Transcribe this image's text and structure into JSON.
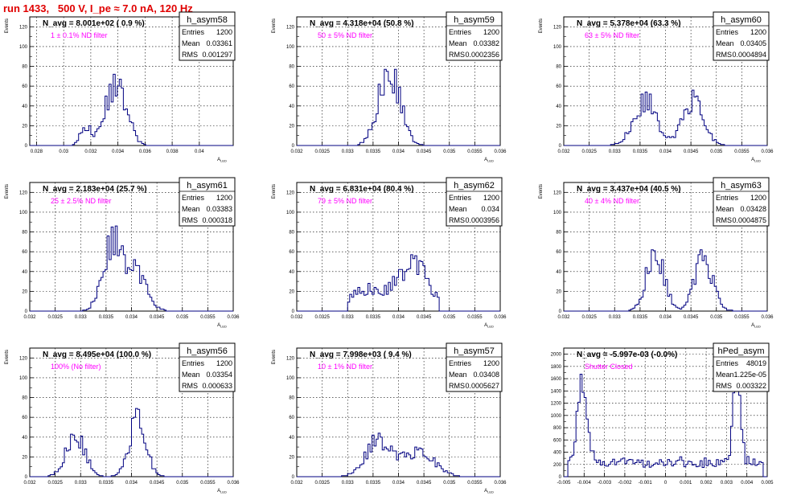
{
  "title": "run 1433,   500 V, I_pe ≈ 7.0 nA, 120 Hz",
  "colors": {
    "hist": "#000080",
    "filter_label": "#ff00ff",
    "title": "#e00000",
    "grid": "#000000"
  },
  "chart_data": [
    {
      "type": "histogram",
      "name": "h_asym58",
      "nlabel": "N_avg = 8.001e+02 ( 0.9 %)",
      "filter": "1 ± 0.1% ND filter",
      "stats": {
        "Entries": "1200",
        "Mean": "0.03361",
        "RMS": "0.001297"
      },
      "xlabel": "A_LED",
      "ylabel": "Events",
      "xlim": [
        0.0275,
        0.0425
      ],
      "ylim": [
        0,
        130
      ],
      "xticks": [
        0.028,
        0.03,
        0.032,
        0.034,
        0.036,
        0.038,
        0.04
      ],
      "xtick_labels": [
        "0.028",
        "0.03",
        "0.032",
        "0.034",
        "0.036",
        "0.038",
        "0.04"
      ],
      "yticks": [
        0,
        20,
        40,
        60,
        80,
        100,
        120
      ],
      "xpeaks": [
        [
          0.0316,
          20,
          0.00035
        ],
        [
          0.0333,
          38,
          0.0006
        ],
        [
          0.0343,
          44,
          0.0006
        ]
      ],
      "range": [
        0.0303,
        0.0363
      ],
      "counts": [],
      "grid": true
    },
    {
      "type": "histogram",
      "name": "h_asym59",
      "nlabel": "N_avg = 4.318e+04 (50.8 %)",
      "filter": "50 ± 5% ND filter",
      "stats": {
        "Entries": "1200",
        "Mean": "0.03382",
        "RMS": "0.0002356"
      },
      "xlabel": "A_LED",
      "ylabel": "Events",
      "xlim": [
        0.032,
        0.036
      ],
      "ylim": [
        0,
        130
      ],
      "xticks": [
        0.032,
        0.0325,
        0.033,
        0.0335,
        0.034,
        0.0345,
        0.035,
        0.0355,
        0.036
      ],
      "xtick_labels": [
        "0.032",
        "0.0325",
        "0.033",
        "0.0335",
        "0.034",
        "0.0345",
        "0.035",
        "0.0355",
        "0.036"
      ],
      "yticks": [
        0,
        20,
        40,
        60,
        80,
        100,
        120
      ],
      "xpeaks": [
        [
          0.03382,
          78,
          0.00021
        ]
      ],
      "range": [
        0.0332,
        0.0346
      ],
      "counts": [],
      "grid": true
    },
    {
      "type": "histogram",
      "name": "h_asym60",
      "nlabel": "N_avg = 5.378e+04 (63.3 %)",
      "filter": "63 ± 5% ND filter",
      "stats": {
        "Entries": "1200",
        "Mean": "0.03405",
        "RMS": "0.0004894"
      },
      "xlabel": "A_LED",
      "ylabel": "Events",
      "xlim": [
        0.032,
        0.036
      ],
      "ylim": [
        0,
        130
      ],
      "xticks": [
        0.032,
        0.0325,
        0.033,
        0.0335,
        0.034,
        0.0345,
        0.035,
        0.0355,
        0.036
      ],
      "xtick_labels": [
        "0.032",
        "0.0325",
        "0.033",
        "0.0335",
        "0.034",
        "0.0345",
        "0.035",
        "0.0355",
        "0.036"
      ],
      "yticks": [
        0,
        20,
        40,
        60,
        80,
        100,
        120
      ],
      "xpeaks": [
        [
          0.0336,
          46,
          0.00022
        ],
        [
          0.03455,
          48,
          0.0002
        ]
      ],
      "range": [
        0.0328,
        0.0352
      ],
      "counts": [],
      "grid": true
    },
    {
      "type": "histogram",
      "name": "h_asym61",
      "nlabel": "N_avg = 2.183e+04 (25.7 %)",
      "filter": "25 ± 2.5% ND filter",
      "stats": {
        "Entries": "1200",
        "Mean": "0.03383",
        "RMS": "0.000318"
      },
      "xlabel": "A_LED",
      "ylabel": "Events",
      "xlim": [
        0.032,
        0.036
      ],
      "ylim": [
        0,
        130
      ],
      "xticks": [
        0.032,
        0.0325,
        0.033,
        0.0335,
        0.034,
        0.0345,
        0.035,
        0.0355,
        0.036
      ],
      "xtick_labels": [
        "0.032",
        "0.0325",
        "0.033",
        "0.0335",
        "0.034",
        "0.0345",
        "0.035",
        "0.0355",
        "0.036"
      ],
      "yticks": [
        0,
        20,
        40,
        60,
        80,
        100,
        120
      ],
      "xpeaks": [
        [
          0.0336,
          66,
          0.00018
        ],
        [
          0.03405,
          42,
          0.00022
        ]
      ],
      "range": [
        0.0328,
        0.0349
      ],
      "counts": [],
      "grid": true
    },
    {
      "type": "histogram",
      "name": "h_asym62",
      "nlabel": "N_avg = 6.831e+04 (80.4 %)",
      "filter": "79 ± 5% ND filter",
      "stats": {
        "Entries": "1200",
        "Mean": "0.034",
        "RMS": "0.0003956"
      },
      "xlabel": "A_LED",
      "ylabel": "Events",
      "xlim": [
        0.032,
        0.036
      ],
      "ylim": [
        0,
        130
      ],
      "xticks": [
        0.032,
        0.0325,
        0.033,
        0.0335,
        0.034,
        0.0345,
        0.035,
        0.0355,
        0.036
      ],
      "xtick_labels": [
        "0.032",
        "0.0325",
        "0.033",
        "0.0335",
        "0.034",
        "0.0345",
        "0.035",
        "0.0355",
        "0.036"
      ],
      "yticks": [
        0,
        20,
        40,
        60,
        80,
        100,
        120
      ],
      "xpeaks": [
        [
          0.0334,
          22,
          0.00035
        ],
        [
          0.0343,
          48,
          0.0003
        ]
      ],
      "range": [
        0.033,
        0.0348
      ],
      "counts": [],
      "grid": true
    },
    {
      "type": "histogram",
      "name": "h_asym63",
      "nlabel": "N_avg = 3.437e+04 (40.5 %)",
      "filter": "40 ± 4% ND filter",
      "stats": {
        "Entries": "1200",
        "Mean": "0.03428",
        "RMS": "0.0004875"
      },
      "xlabel": "A_LED",
      "ylabel": "Events",
      "xlim": [
        0.032,
        0.036
      ],
      "ylim": [
        0,
        130
      ],
      "xticks": [
        0.032,
        0.0325,
        0.033,
        0.0335,
        0.034,
        0.0345,
        0.035,
        0.0355,
        0.036
      ],
      "xtick_labels": [
        "0.032",
        "0.0325",
        "0.033",
        "0.0335",
        "0.034",
        "0.0345",
        "0.035",
        "0.0355",
        "0.036"
      ],
      "yticks": [
        0,
        20,
        40,
        60,
        80,
        100,
        120
      ],
      "xpeaks": [
        [
          0.0338,
          62,
          0.00017
        ],
        [
          0.03475,
          54,
          0.00018
        ]
      ],
      "range": [
        0.0332,
        0.0353
      ],
      "counts": [],
      "grid": true
    },
    {
      "type": "histogram",
      "name": "h_asym56",
      "nlabel": "N_avg = 8.495e+04 (100.0 %)",
      "filter": "100% (No filter)",
      "stats": {
        "Entries": "1200",
        "Mean": "0.03354",
        "RMS": "0.000633"
      },
      "xlabel": "A_LED",
      "ylabel": "Events",
      "xlim": [
        0.032,
        0.036
      ],
      "ylim": [
        0,
        130
      ],
      "xticks": [
        0.032,
        0.0325,
        0.033,
        0.0335,
        0.034,
        0.0345,
        0.035,
        0.0355,
        0.036
      ],
      "xtick_labels": [
        "0.032",
        "0.0325",
        "0.033",
        "0.0335",
        "0.034",
        "0.0345",
        "0.035",
        "0.0355",
        "0.036"
      ],
      "yticks": [
        0,
        20,
        40,
        60,
        80,
        100,
        120
      ],
      "xpeaks": [
        [
          0.0329,
          44,
          0.00018
        ],
        [
          0.03412,
          62,
          0.00016
        ]
      ],
      "range": [
        0.0323,
        0.0348
      ],
      "counts": [],
      "grid": true
    },
    {
      "type": "histogram",
      "name": "h_asym57",
      "nlabel": "N_avg = 7.998e+03 ( 9.4 %)",
      "filter": "10 ± 1% ND filter",
      "stats": {
        "Entries": "1200",
        "Mean": "0.03408",
        "RMS": "0.0005627"
      },
      "xlabel": "A_LED",
      "ylabel": "Events",
      "xlim": [
        0.032,
        0.036
      ],
      "ylim": [
        0,
        130
      ],
      "xticks": [
        0.032,
        0.0325,
        0.033,
        0.0335,
        0.034,
        0.0345,
        0.035,
        0.0355,
        0.036
      ],
      "xtick_labels": [
        "0.032",
        "0.0325",
        "0.033",
        "0.0335",
        "0.034",
        "0.0345",
        "0.035",
        "0.0355",
        "0.036"
      ],
      "yticks": [
        0,
        20,
        40,
        60,
        80,
        100,
        120
      ],
      "xpeaks": [
        [
          0.0336,
          36,
          0.00025
        ],
        [
          0.0344,
          26,
          0.0003
        ]
      ],
      "range": [
        0.0326,
        0.0352
      ],
      "counts": [],
      "grid": true
    },
    {
      "type": "histogram",
      "name": "hPed_asym",
      "nlabel": "N_avg = -5.997e-03 (-0.0%)",
      "filter": "Shutter Closed",
      "stats": {
        "Entries": "48019",
        "Mean": "1.225e-05",
        "RMS": "0.003322"
      },
      "xlabel": "",
      "ylabel": "",
      "xlim": [
        -0.005,
        0.005
      ],
      "ylim": [
        0,
        2100
      ],
      "xticks": [
        -0.005,
        -0.004,
        -0.003,
        -0.002,
        -0.001,
        0,
        0.001,
        0.002,
        0.003,
        0.004,
        0.005
      ],
      "xtick_labels": [
        "-0.005",
        "-0.004",
        "-0.003",
        "-0.002",
        "-0.001",
        "0",
        "0.001",
        "0.002",
        "0.003",
        "0.004",
        "0.005"
      ],
      "yticks": [
        0,
        200,
        400,
        600,
        800,
        1000,
        1200,
        1400,
        1600,
        1800,
        2000
      ],
      "xpeaks": [
        [
          -0.0041,
          1100,
          0.00025
        ],
        [
          0.0035,
          1500,
          0.00018
        ]
      ],
      "range": [
        -0.0048,
        0.0048
      ],
      "baseline": 230,
      "counts": [],
      "grid": true
    }
  ]
}
